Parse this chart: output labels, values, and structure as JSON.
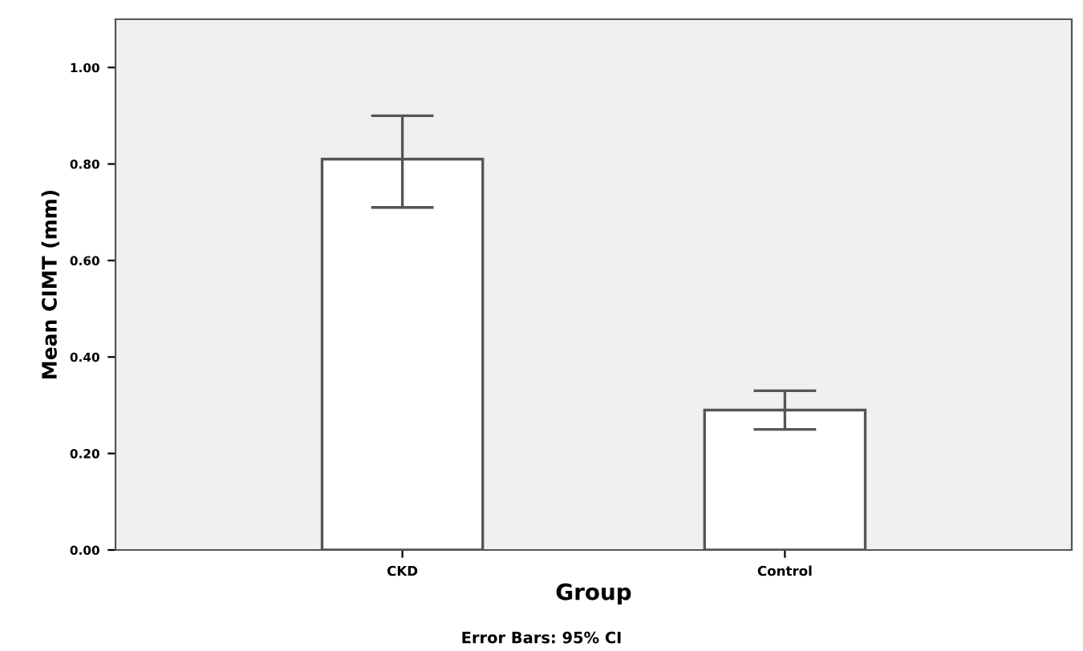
{
  "chart_data": {
    "type": "bar",
    "xlabel": "Group",
    "ylabel": "Mean CIMT (mm)",
    "categories": [
      "CKD",
      "Control"
    ],
    "values": [
      0.81,
      0.29
    ],
    "errors": [
      [
        0.71,
        0.9
      ],
      [
        0.25,
        0.33
      ]
    ],
    "color": "#ffffff",
    "ylim": [
      0,
      1.1
    ],
    "yticks": [
      {
        "value": 0,
        "label": "0.00"
      },
      {
        "value": 0.2,
        "label": "0.20"
      },
      {
        "value": 0.4,
        "label": "0.40"
      },
      {
        "value": 0.6,
        "label": "0.60"
      },
      {
        "value": 0.8,
        "label": "0.80"
      },
      {
        "value": 1.0,
        "label": "1.00"
      }
    ],
    "grid": false,
    "annotations": [
      "Error Bars: 95% CI"
    ]
  }
}
